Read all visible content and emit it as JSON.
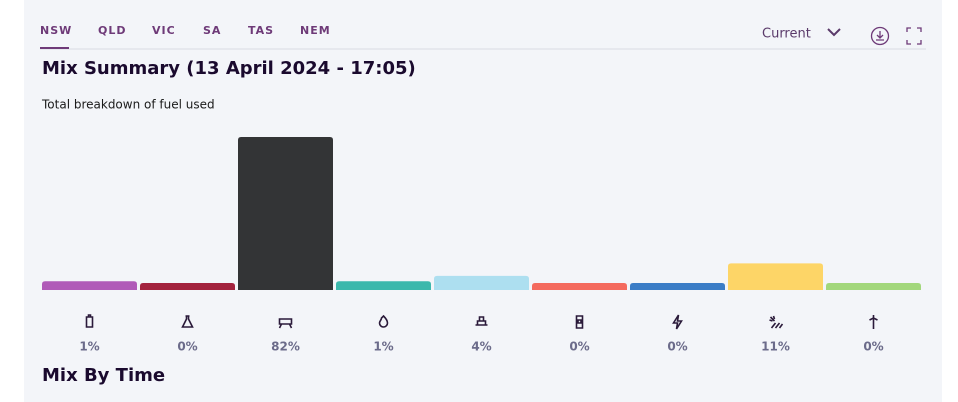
{
  "tabs": [
    "NSW",
    "QLD",
    "VIC",
    "SA",
    "TAS",
    "NEM"
  ],
  "selector": "Current",
  "chart_data": {
    "type": "bar",
    "title": "Mix Summary (13 April 2024 - 17:05)",
    "subtitle": "Total breakdown of fuel used",
    "categories": [
      null,
      null,
      null,
      null,
      null,
      null,
      null,
      null,
      null
    ],
    "values": [
      1,
      0,
      82,
      1,
      4,
      0,
      0,
      11,
      0
    ],
    "value_labels": [
      "1%",
      "0%",
      "82%",
      "1%",
      "4%",
      "0%",
      "0%",
      "11%",
      "0%"
    ],
    "colors": [
      "#b05ab8",
      "#a3223e",
      "#333436",
      "#3bb8ac",
      "#addff0",
      "#f46a5e",
      "#3a7cc6",
      "#fdd567",
      "#a2d77c"
    ]
  },
  "section_title": "Mix By Time"
}
